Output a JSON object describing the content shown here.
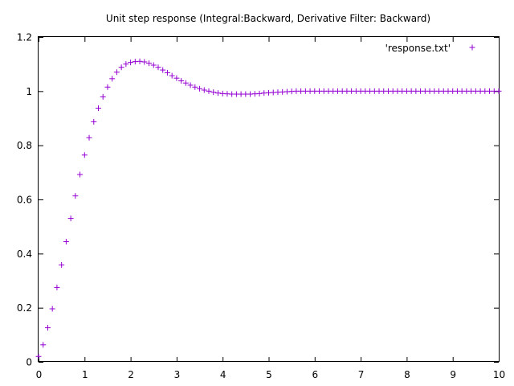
{
  "chart_data": {
    "type": "scatter",
    "title": "Unit step response (Integral:Backward, Derivative Filter: Backward)",
    "xlabel": "",
    "ylabel": "",
    "xlim": [
      0,
      10
    ],
    "ylim": [
      0,
      1.2
    ],
    "x_ticks": [
      "0",
      "1",
      "2",
      "3",
      "4",
      "5",
      "6",
      "7",
      "8",
      "9",
      "10"
    ],
    "y_ticks": [
      "0",
      "0.2",
      "0.4",
      "0.6",
      "0.8",
      "1",
      "1.2"
    ],
    "grid": false,
    "legend_position": "top-right",
    "marker": "+",
    "color": "#9400d3",
    "series": [
      {
        "name": "'response.txt'",
        "x": [
          0,
          0.1,
          0.2,
          0.3,
          0.4,
          0.5,
          0.6,
          0.7,
          0.8,
          0.9,
          1.0,
          1.1,
          1.2,
          1.3,
          1.4,
          1.5,
          1.6,
          1.7,
          1.8,
          1.9,
          2.0,
          2.1,
          2.2,
          2.3,
          2.4,
          2.5,
          2.6,
          2.7,
          2.8,
          2.9,
          3.0,
          3.1,
          3.2,
          3.3,
          3.4,
          3.5,
          3.6,
          3.7,
          3.8,
          3.9,
          4.0,
          4.1,
          4.2,
          4.3,
          4.4,
          4.5,
          4.6,
          4.7,
          4.8,
          4.9,
          5.0,
          5.1,
          5.2,
          5.3,
          5.4,
          5.5,
          5.6,
          5.7,
          5.8,
          5.9,
          6.0,
          6.1,
          6.2,
          6.3,
          6.4,
          6.5,
          6.6,
          6.7,
          6.8,
          6.9,
          7.0,
          7.1,
          7.2,
          7.3,
          7.4,
          7.5,
          7.6,
          7.7,
          7.8,
          7.9,
          8.0,
          8.1,
          8.2,
          8.3,
          8.4,
          8.5,
          8.6,
          8.7,
          8.8,
          8.9,
          9.0,
          9.1,
          9.2,
          9.3,
          9.4,
          9.5,
          9.6,
          9.7,
          9.8,
          9.9,
          10.0
        ],
        "y": [
          0.02,
          0.063,
          0.126,
          0.196,
          0.275,
          0.358,
          0.444,
          0.53,
          0.613,
          0.692,
          0.764,
          0.828,
          0.887,
          0.937,
          0.979,
          1.015,
          1.046,
          1.07,
          1.088,
          1.1,
          1.106,
          1.109,
          1.11,
          1.108,
          1.103,
          1.096,
          1.088,
          1.078,
          1.068,
          1.057,
          1.048,
          1.038,
          1.03,
          1.022,
          1.015,
          1.009,
          1.004,
          1.0,
          0.996,
          0.993,
          0.991,
          0.99,
          0.989,
          0.989,
          0.989,
          0.989,
          0.989,
          0.99,
          0.991,
          0.993,
          0.994,
          0.995,
          0.996,
          0.997,
          0.998,
          0.999,
          1.0,
          1.0,
          1.0,
          1.0,
          1.0,
          1.0,
          1.0,
          1.0,
          1.0,
          1.0,
          1.0,
          1.0,
          1.0,
          1.0,
          1.0,
          1.0,
          1.0,
          1.0,
          1.0,
          1.0,
          1.0,
          1.0,
          1.0,
          1.0,
          1.0,
          1.0,
          1.0,
          1.0,
          1.0,
          1.0,
          1.0,
          1.0,
          1.0,
          1.0,
          1.0,
          1.0,
          1.0,
          1.0,
          1.0,
          1.0,
          1.0,
          1.0,
          1.0,
          1.0,
          1.0
        ]
      }
    ]
  }
}
